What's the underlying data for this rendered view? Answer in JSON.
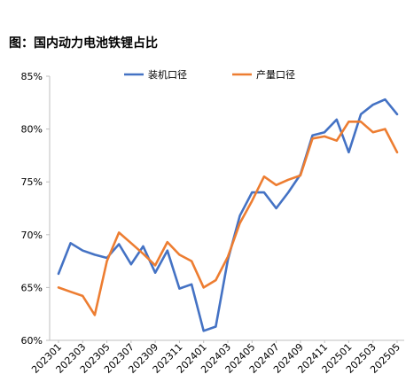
{
  "chart_data": {
    "type": "line",
    "title": "图：国内动力电池铁锂占比",
    "xlabel": "",
    "ylabel": "",
    "ylim": [
      0.6,
      0.85
    ],
    "yticks": [
      0.6,
      0.65,
      0.7,
      0.75,
      0.8,
      0.85
    ],
    "ytick_labels": [
      "60%",
      "65%",
      "70%",
      "75%",
      "80%",
      "85%"
    ],
    "x": [
      "202301",
      "202302",
      "202303",
      "202304",
      "202305",
      "202306",
      "202307",
      "202308",
      "202309",
      "202310",
      "202311",
      "202312",
      "202401",
      "202402",
      "202403",
      "202404",
      "202405",
      "202406",
      "202407",
      "202408",
      "202409",
      "202410",
      "202411",
      "202412",
      "202501",
      "202502",
      "202503",
      "202504",
      "202505"
    ],
    "xtick_labels": [
      "202301",
      "202303",
      "202305",
      "202307",
      "202309",
      "202311",
      "202401",
      "202403",
      "202405",
      "202407",
      "202409",
      "202411",
      "202501",
      "202503",
      "202505"
    ],
    "legend_position": "top",
    "grid": false,
    "series": [
      {
        "name": "装机口径",
        "color": "#4472C4",
        "values": [
          0.663,
          0.692,
          0.685,
          0.681,
          0.678,
          0.691,
          0.672,
          0.689,
          0.664,
          0.685,
          0.649,
          0.653,
          0.609,
          0.613,
          0.676,
          0.718,
          0.74,
          0.74,
          0.725,
          0.74,
          0.757,
          0.794,
          0.797,
          0.809,
          0.778,
          0.814,
          0.823,
          0.828,
          0.814
        ]
      },
      {
        "name": "产量口径",
        "color": "#ED7D31",
        "values": [
          0.65,
          0.646,
          0.642,
          0.624,
          0.675,
          0.702,
          0.692,
          0.682,
          0.671,
          0.693,
          0.681,
          0.675,
          0.65,
          0.657,
          0.679,
          0.711,
          0.732,
          0.755,
          0.747,
          0.752,
          0.756,
          0.791,
          0.793,
          0.789,
          0.807,
          0.807,
          0.797,
          0.8,
          0.778
        ]
      }
    ]
  }
}
